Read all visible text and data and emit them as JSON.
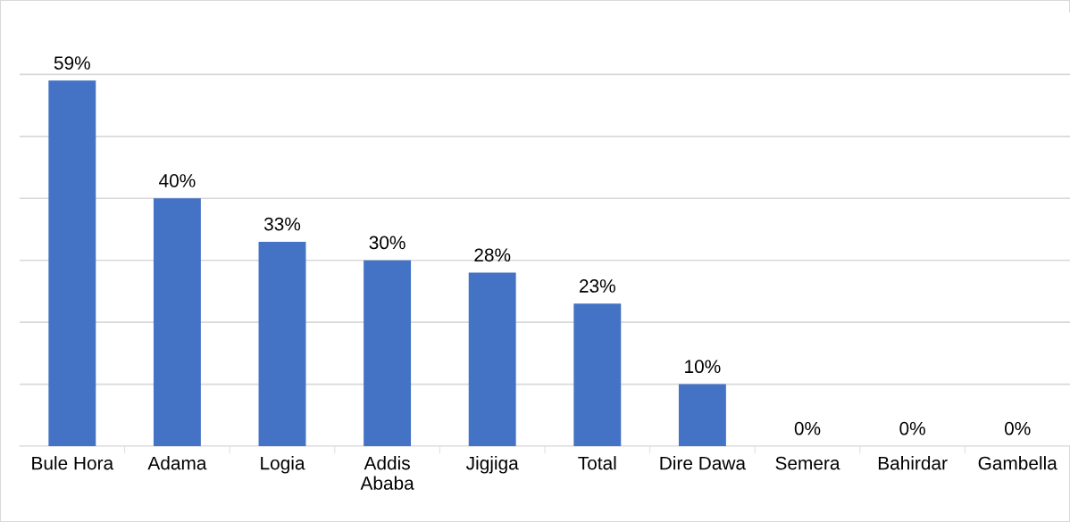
{
  "chart_data": {
    "type": "bar",
    "categories": [
      "Bule Hora",
      "Adama",
      "Logia",
      "Addis\nAbaba",
      "Jigjiga",
      "Total",
      "Dire Dawa",
      "Semera",
      "Bahirdar",
      "Gambella"
    ],
    "values": [
      59,
      40,
      33,
      30,
      28,
      23,
      10,
      0,
      0,
      0
    ],
    "value_labels": [
      "59%",
      "40%",
      "33%",
      "30%",
      "28%",
      "23%",
      "10%",
      "0%",
      "0%",
      "0%"
    ],
    "color": "#4472c4",
    "ylim": [
      0,
      70
    ],
    "yticks": [
      {
        "value": 0,
        "label": null
      },
      {
        "value": 10,
        "label": null
      },
      {
        "value": 20,
        "label": null
      },
      {
        "value": 30,
        "label": null
      },
      {
        "value": 40,
        "label": null
      },
      {
        "value": 50,
        "label": null
      },
      {
        "value": 60,
        "label": null
      }
    ],
    "tick_labels": "x",
    "grid": "y"
  }
}
